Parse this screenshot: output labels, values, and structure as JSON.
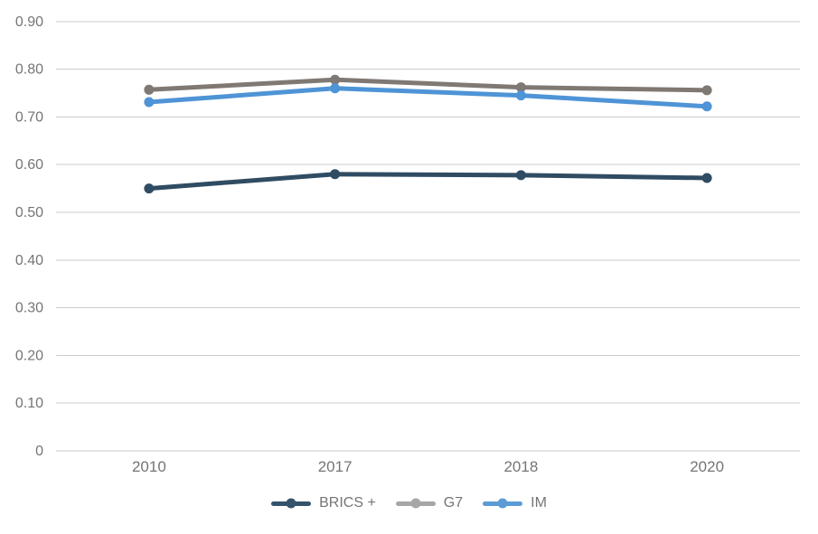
{
  "chart_data": {
    "type": "line",
    "title": "",
    "xlabel": "",
    "ylabel": "",
    "categories": [
      "2010",
      "2017",
      "2018",
      "2020"
    ],
    "series": [
      {
        "name": "BRICS +",
        "values": [
          0.55,
          0.58,
          0.578,
          0.572
        ],
        "line_color": "#2F4C63",
        "legend_color": "#35536B"
      },
      {
        "name": "G7",
        "values": [
          0.757,
          0.778,
          0.762,
          0.756
        ],
        "line_color": "#7F7873",
        "legend_color": "#A6A6A6"
      },
      {
        "name": "IM",
        "values": [
          0.731,
          0.76,
          0.745,
          0.722
        ],
        "line_color": "#4E94D6",
        "legend_color": "#5B9BD5"
      }
    ],
    "y_ticks": [
      {
        "value": 0.9,
        "label": "0.90"
      },
      {
        "value": 0.8,
        "label": "0.80"
      },
      {
        "value": 0.7,
        "label": "0.70"
      },
      {
        "value": 0.6,
        "label": "0.60"
      },
      {
        "value": 0.5,
        "label": "0.50"
      },
      {
        "value": 0.4,
        "label": "0.40"
      },
      {
        "value": 0.3,
        "label": "0.30"
      },
      {
        "value": 0.2,
        "label": "0.20"
      },
      {
        "value": 0.1,
        "label": "0.10"
      },
      {
        "value": 0,
        "label": "0"
      }
    ],
    "ylim": [
      0,
      0.94
    ],
    "grid": true,
    "legend_position": "bottom",
    "colors": {
      "axis_text": "#757575",
      "gridline": "#CBCBCB",
      "background": "#FFFFFF"
    }
  }
}
